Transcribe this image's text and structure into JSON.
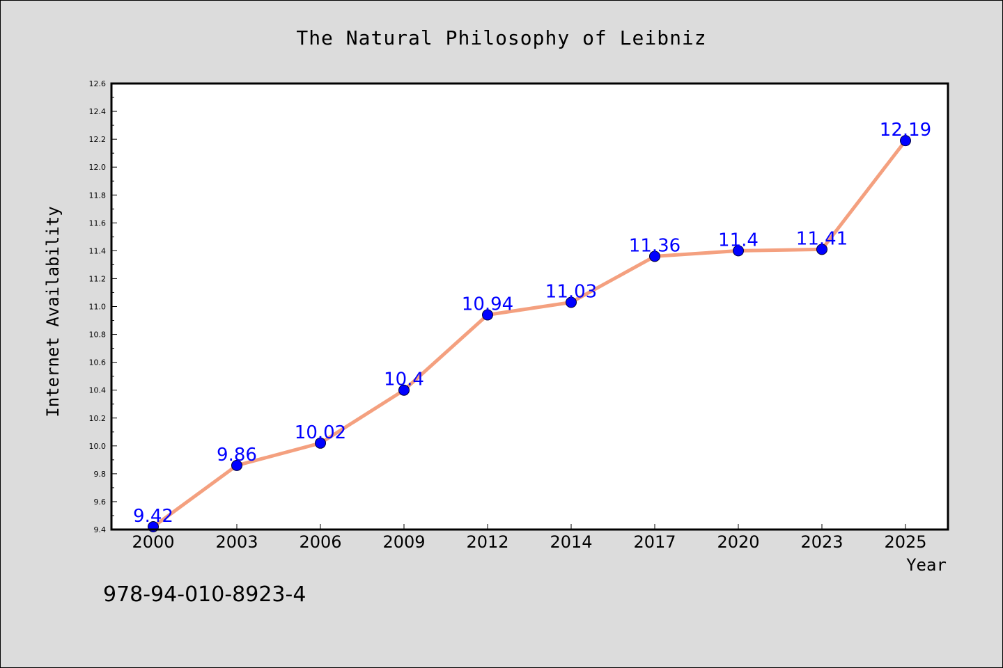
{
  "chart_data": {
    "type": "line",
    "title": "The Natural Philosophy of Leibniz",
    "xlabel": "Year",
    "ylabel": "Internet Availability",
    "categories": [
      "2000",
      "2003",
      "2006",
      "2009",
      "2012",
      "2014",
      "2017",
      "2020",
      "2023",
      "2025"
    ],
    "series": [
      {
        "values": [
          9.42,
          9.86,
          10.02,
          10.4,
          10.94,
          11.03,
          11.36,
          11.4,
          11.41,
          12.19
        ],
        "data_labels": [
          "9.42",
          "9.86",
          "10.02",
          "10.4",
          "10.94",
          "11.03",
          "11.36",
          "11.4",
          "11.41",
          "12.19"
        ]
      }
    ],
    "ylim": [
      9.4,
      12.6
    ],
    "yticks": [
      "9.4",
      "9.6",
      "9.8",
      "10.0",
      "10.2",
      "10.4",
      "10.6",
      "10.8",
      "11.0",
      "11.2",
      "11.4",
      "11.6",
      "11.8",
      "12.0",
      "12.2",
      "12.4",
      "12.6"
    ],
    "grid": false,
    "legend": "none",
    "colors": {
      "line": "#f4a07f",
      "marker": "#0000ff",
      "label": "#0000ff",
      "background": "#dcdcdc",
      "plot_background": "#ffffff"
    }
  },
  "footer_text": "978-94-010-8923-4"
}
